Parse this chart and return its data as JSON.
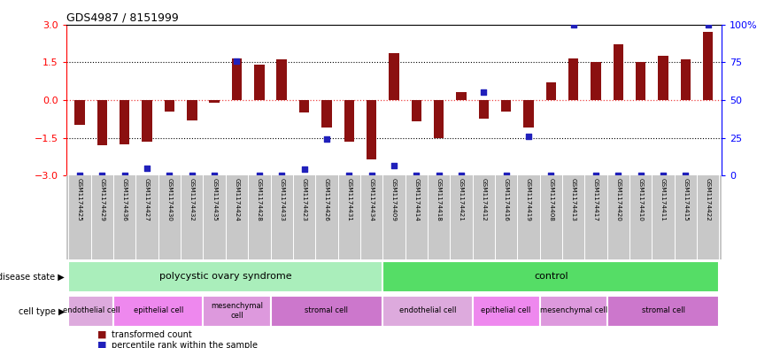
{
  "title": "GDS4987 / 8151999",
  "samples": [
    "GSM1174425",
    "GSM1174429",
    "GSM1174436",
    "GSM1174427",
    "GSM1174430",
    "GSM1174432",
    "GSM1174435",
    "GSM1174424",
    "GSM1174428",
    "GSM1174433",
    "GSM1174423",
    "GSM1174426",
    "GSM1174431",
    "GSM1174434",
    "GSM1174409",
    "GSM1174414",
    "GSM1174418",
    "GSM1174421",
    "GSM1174412",
    "GSM1174416",
    "GSM1174419",
    "GSM1174408",
    "GSM1174413",
    "GSM1174417",
    "GSM1174420",
    "GSM1174410",
    "GSM1174411",
    "GSM1174415",
    "GSM1174422"
  ],
  "bar_values": [
    -1.0,
    -1.8,
    -1.75,
    -1.65,
    -0.45,
    -0.8,
    -0.1,
    1.65,
    1.4,
    1.6,
    -0.5,
    -1.1,
    -1.65,
    -2.35,
    1.85,
    -0.85,
    -1.5,
    0.3,
    -0.75,
    -0.45,
    -1.1,
    0.7,
    1.65,
    1.5,
    2.2,
    1.5,
    1.75,
    1.6,
    2.7
  ],
  "percentile_left_coords": [
    -3.0,
    -3.0,
    -3.0,
    -2.7,
    -3.0,
    -3.0,
    -3.0,
    1.55,
    -3.0,
    -3.0,
    -2.75,
    -1.55,
    -3.0,
    -3.0,
    -2.6,
    -3.0,
    -3.0,
    -3.0,
    0.3,
    -3.0,
    -1.45,
    -3.0,
    3.0,
    -3.0,
    -3.0,
    -3.0,
    -3.0,
    -3.0,
    3.0
  ],
  "bar_color": "#8B1010",
  "dot_color": "#2020BB",
  "ylim_left": [
    -3,
    3
  ],
  "ylim_right": [
    0,
    100
  ],
  "left_ticks": [
    -3,
    -1.5,
    0,
    1.5,
    3
  ],
  "right_ticks": [
    0,
    25,
    50,
    75,
    100
  ],
  "right_tick_labels": [
    "0",
    "25",
    "50",
    "75",
    "100%"
  ],
  "dotted_lines": [
    1.5,
    -1.5
  ],
  "zero_line_color": "#EE4444",
  "disease_groups": [
    {
      "label": "polycystic ovary syndrome",
      "start": 0,
      "end": 14,
      "color": "#AAEEBB"
    },
    {
      "label": "control",
      "start": 14,
      "end": 29,
      "color": "#55DD66"
    }
  ],
  "cell_groups": [
    {
      "label": "endothelial cell",
      "start": 0,
      "end": 2,
      "color": "#DDAADD"
    },
    {
      "label": "epithelial cell",
      "start": 2,
      "end": 6,
      "color": "#EE88EE"
    },
    {
      "label": "mesenchymal\ncell",
      "start": 6,
      "end": 9,
      "color": "#DD99DD"
    },
    {
      "label": "stromal cell",
      "start": 9,
      "end": 14,
      "color": "#CC77CC"
    },
    {
      "label": "endothelial cell",
      "start": 14,
      "end": 18,
      "color": "#DDAADD"
    },
    {
      "label": "epithelial cell",
      "start": 18,
      "end": 21,
      "color": "#EE88EE"
    },
    {
      "label": "mesenchymal cell",
      "start": 21,
      "end": 24,
      "color": "#DD99DD"
    },
    {
      "label": "stromal cell",
      "start": 24,
      "end": 29,
      "color": "#CC77CC"
    }
  ],
  "legend": [
    {
      "label": "transformed count",
      "color": "#8B1010"
    },
    {
      "label": "percentile rank within the sample",
      "color": "#2020BB"
    }
  ],
  "disease_label": "disease state",
  "celltype_label": "cell type"
}
